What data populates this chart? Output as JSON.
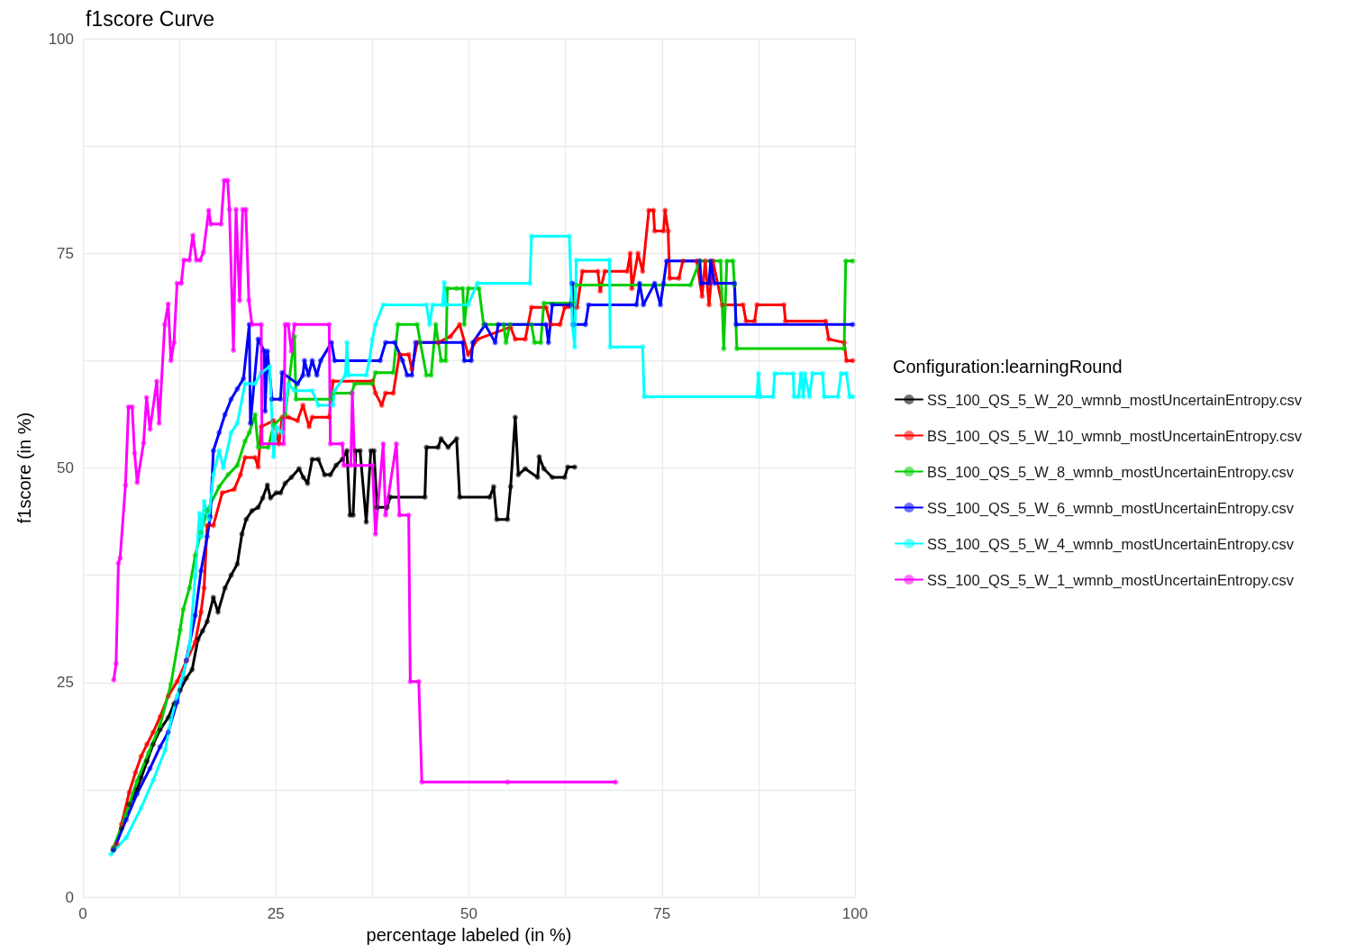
{
  "chart_data": {
    "type": "line",
    "title": "f1score Curve",
    "xlabel": "percentage labeled (in %)",
    "ylabel": "f1score (in %)",
    "legend_title": "Configuration:learningRound",
    "xlim": [
      0,
      100
    ],
    "xticks": [
      0,
      {
        "value": 12.5,
        "label": null
      },
      25,
      {
        "value": 37.5,
        "label": null
      },
      50,
      {
        "value": 62.5,
        "label": null
      },
      75,
      {
        "value": 87.5,
        "label": null
      },
      100
    ],
    "ylim": [
      0,
      100
    ],
    "yticks": [
      0,
      {
        "value": 12.5,
        "label": null
      },
      25,
      {
        "value": 37.5,
        "label": null
      },
      50,
      {
        "value": 62.5,
        "label": null
      },
      75,
      {
        "value": 87.5,
        "label": null
      },
      100
    ],
    "grid": true,
    "legend": "right",
    "marker": "circle",
    "line_style": "solid",
    "series": [
      {
        "name": "SS_100_QS_5_W_20_wmnb_mostUncertainEntropy.csv",
        "color": "#000000",
        "x": [
          3.9,
          5.0,
          6.0,
          7.0,
          7.55,
          8.3,
          9.1,
          10.0,
          11.05,
          11.8,
          12.6,
          13.4,
          14.15,
          14.9,
          15.5,
          16.1,
          16.9,
          17.5,
          18.4,
          19.2,
          20.0,
          20.6,
          21.15,
          21.9,
          22.7,
          23.3,
          23.9,
          24.3,
          25.05,
          25.6,
          26.2,
          27.0,
          28.0,
          28.55,
          29.1,
          29.7,
          30.5,
          31.3,
          32.05,
          32.8,
          33.6,
          34.2,
          34.6,
          35.0,
          35.35,
          35.9,
          36.7,
          37.3,
          37.7,
          38.1,
          39.4,
          39.8,
          44.3,
          44.5,
          46.0,
          46.4,
          47.3,
          48.4,
          48.8,
          52.7,
          53.2,
          53.6,
          55.0,
          55.4,
          56.0,
          56.4,
          57.3,
          58.9,
          59.1,
          59.7,
          60.8,
          62.4,
          62.8,
          63.7
        ],
        "values": [
          5.5,
          8.0,
          10.8,
          12.5,
          13.9,
          15.8,
          17.8,
          19.5,
          20.9,
          22.5,
          24.1,
          25.5,
          26.5,
          30.0,
          31.0,
          32.1,
          34.9,
          33.2,
          36.0,
          37.5,
          38.8,
          42.3,
          44.0,
          45.0,
          45.4,
          46.5,
          48.0,
          46.5,
          47.1,
          47.1,
          48.2,
          48.9,
          49.9,
          48.9,
          48.2,
          51.0,
          51.0,
          49.2,
          49.2,
          50.3,
          51.0,
          52.0,
          44.5,
          44.5,
          52.0,
          52.0,
          43.7,
          52.0,
          52.0,
          45.4,
          45.4,
          46.6,
          46.6,
          52.4,
          52.4,
          53.4,
          52.4,
          53.4,
          46.6,
          46.6,
          47.8,
          44.0,
          44.0,
          47.8,
          55.9,
          49.2,
          49.9,
          48.9,
          51.3,
          49.9,
          48.9,
          48.9,
          50.1,
          50.1
        ]
      },
      {
        "name": "BS_100_QS_5_W_10_wmnb_mostUncertainEntropy.csv",
        "color": "#ff0000",
        "x": [
          4.0,
          4.4,
          5.0,
          6.0,
          6.8,
          7.55,
          8.3,
          9.1,
          10.0,
          11.05,
          12.2,
          13.4,
          14.55,
          15.3,
          15.7,
          16.1,
          16.9,
          18.05,
          19.6,
          20.4,
          21.0,
          22.3,
          22.7,
          23.1,
          24.7,
          25.4,
          25.8,
          26.6,
          27.8,
          28.5,
          29.3,
          29.7,
          31.9,
          32.4,
          37.5,
          37.9,
          38.7,
          39.2,
          40.2,
          41.0,
          42.2,
          42.6,
          43.3,
          46.0,
          47.6,
          48.8,
          49.9,
          51.1,
          55.4,
          56.0,
          57.3,
          58.1,
          60.0,
          60.6,
          61.8,
          62.4,
          64.0,
          64.7,
          66.7,
          67.0,
          67.6,
          70.5,
          70.9,
          71.1,
          71.9,
          72.5,
          73.3,
          73.9,
          74.05,
          75.2,
          75.4,
          75.8,
          76.0,
          77.2,
          77.7,
          79.5,
          80.2,
          80.6,
          81.1,
          81.6,
          82.8,
          85.5,
          85.9,
          87.0,
          87.3,
          90.8,
          91.0,
          96.2,
          96.6,
          98.6,
          98.9,
          99.7
        ],
        "values": [
          5.8,
          6.2,
          8.5,
          12.2,
          14.5,
          16.4,
          17.8,
          19.2,
          21.0,
          23.4,
          25.1,
          27.5,
          29.7,
          33.2,
          36.0,
          43.3,
          43.3,
          47.1,
          47.5,
          49.2,
          51.2,
          51.2,
          50.1,
          54.8,
          55.5,
          52.8,
          55.9,
          55.9,
          55.5,
          57.3,
          54.8,
          55.9,
          55.9,
          60.1,
          60.1,
          58.7,
          57.3,
          58.7,
          58.7,
          63.2,
          63.2,
          61.5,
          64.6,
          64.6,
          65.3,
          66.7,
          63.2,
          65.0,
          66.4,
          65.0,
          65.0,
          68.7,
          68.7,
          66.7,
          66.7,
          68.7,
          68.7,
          72.9,
          72.9,
          70.6,
          72.9,
          72.9,
          75.0,
          70.9,
          75.0,
          72.9,
          80.0,
          80.0,
          77.6,
          77.6,
          80.0,
          77.6,
          72.1,
          72.1,
          74.1,
          74.1,
          70.0,
          74.1,
          69.0,
          74.1,
          69.0,
          69.0,
          67.1,
          67.1,
          69.0,
          69.0,
          67.1,
          67.1,
          65.0,
          64.6,
          62.5,
          62.5
        ]
      },
      {
        "name": "BS_100_QS_5_W_8_wmnb_mostUncertainEntropy.csv",
        "color": "#00cd00",
        "x": [
          4.0,
          5.5,
          7.0,
          8.5,
          10.0,
          11.4,
          12.6,
          13.0,
          13.8,
          14.55,
          15.3,
          16.1,
          17.65,
          18.8,
          20.0,
          21.0,
          21.55,
          22.3,
          22.7,
          24.0,
          24.7,
          26.2,
          27.4,
          27.6,
          32.05,
          32.4,
          34.8,
          35.2,
          37.5,
          37.9,
          40.2,
          40.8,
          43.3,
          43.7,
          44.5,
          45.1,
          45.7,
          46.4,
          47.0,
          47.2,
          48.4,
          49.2,
          49.4,
          49.9,
          51.3,
          51.9,
          54.5,
          54.8,
          55.3,
          58.1,
          58.5,
          59.3,
          59.7,
          63.5,
          63.9,
          78.7,
          79.9,
          82.6,
          83.0,
          83.4,
          84.2,
          84.4,
          84.7,
          98.6,
          98.8,
          99.7
        ],
        "values": [
          5.8,
          9.5,
          13.5,
          16.8,
          20.0,
          24.8,
          31.1,
          33.5,
          36.0,
          39.8,
          42.5,
          45.0,
          47.8,
          49.2,
          50.3,
          53.1,
          54.1,
          56.2,
          52.4,
          52.4,
          55.0,
          56.2,
          65.3,
          58.0,
          58.0,
          58.7,
          58.7,
          59.8,
          59.8,
          61.1,
          61.1,
          66.7,
          66.7,
          64.6,
          60.8,
          60.8,
          66.7,
          62.5,
          62.5,
          70.9,
          70.9,
          70.9,
          66.7,
          70.9,
          70.9,
          66.7,
          66.7,
          64.6,
          66.7,
          66.7,
          64.6,
          64.6,
          69.2,
          69.2,
          71.3,
          71.3,
          74.1,
          74.1,
          63.9,
          74.1,
          74.1,
          71.3,
          63.9,
          63.9,
          74.1,
          74.1
        ]
      },
      {
        "name": "SS_100_QS_5_W_6_wmnb_mostUncertainEntropy.csv",
        "color": "#0000ff",
        "x": [
          4.0,
          5.6,
          7.0,
          8.7,
          10.0,
          11.05,
          12.2,
          13.4,
          14.55,
          15.3,
          16.1,
          16.5,
          16.9,
          17.65,
          18.4,
          19.2,
          20.0,
          20.8,
          21.55,
          21.7,
          22.7,
          23.5,
          23.6,
          23.9,
          24.5,
          25.6,
          25.8,
          27.8,
          28.5,
          28.7,
          29.2,
          29.7,
          30.3,
          30.8,
          32.2,
          32.6,
          38.5,
          39.2,
          40.4,
          41.4,
          42.0,
          42.6,
          43.1,
          49.2,
          49.4,
          50.3,
          50.5,
          52.1,
          53.4,
          53.8,
          60.0,
          60.3,
          60.8,
          63.2,
          63.4,
          63.5,
          65.1,
          65.5,
          71.7,
          72.1,
          72.6,
          74.05,
          74.8,
          75.2,
          75.6,
          79.9,
          80.1,
          81.1,
          81.3,
          81.8,
          84.4,
          84.6,
          99.7
        ],
        "values": [
          5.5,
          9.0,
          12.0,
          15.0,
          17.5,
          19.2,
          22.7,
          27.6,
          32.8,
          38.0,
          42.0,
          44.3,
          52.0,
          54.1,
          56.2,
          58.0,
          59.2,
          60.4,
          66.7,
          55.2,
          65.0,
          63.6,
          56.6,
          63.6,
          58.0,
          58.0,
          61.1,
          59.8,
          60.8,
          62.5,
          60.8,
          62.5,
          60.8,
          62.5,
          64.6,
          62.5,
          62.5,
          64.6,
          64.6,
          62.5,
          60.8,
          60.8,
          64.6,
          64.6,
          62.5,
          62.5,
          64.6,
          66.7,
          64.6,
          66.7,
          66.7,
          64.6,
          69.0,
          69.0,
          71.5,
          66.7,
          66.7,
          69.0,
          69.0,
          71.5,
          69.0,
          71.5,
          69.0,
          71.5,
          74.1,
          74.1,
          71.5,
          71.5,
          74.1,
          71.5,
          71.5,
          66.7,
          66.7
        ]
      },
      {
        "name": "SS_100_QS_5_W_4_wmnb_mostUncertainEntropy.csv",
        "color": "#00ffff",
        "x": [
          3.65,
          5.6,
          7.55,
          9.1,
          10.65,
          11.4,
          12.2,
          13.0,
          13.8,
          14.55,
          15.1,
          15.4,
          15.7,
          16.3,
          16.9,
          17.65,
          18.2,
          19.2,
          20.0,
          21.0,
          22.3,
          23.1,
          24.2,
          24.7,
          25.05,
          25.8,
          26.6,
          27.4,
          29.7,
          30.5,
          32.4,
          32.6,
          34.0,
          34.2,
          34.4,
          36.7,
          37.1,
          37.5,
          37.9,
          38.9,
          44.5,
          44.9,
          45.3,
          46.6,
          46.8,
          47.0,
          49.9,
          51.1,
          57.9,
          58.1,
          63.0,
          63.4,
          63.7,
          63.9,
          68.2,
          68.3,
          72.5,
          72.7,
          87.3,
          87.5,
          87.7,
          89.4,
          89.6,
          92.0,
          92.1,
          92.7,
          93.0,
          93.3,
          93.5,
          94.1,
          94.5,
          95.8,
          96.0,
          97.8,
          98.2,
          98.9,
          99.3,
          99.7
        ],
        "values": [
          5.0,
          6.9,
          10.4,
          13.6,
          17.1,
          20.6,
          23.4,
          26.0,
          29.0,
          37.4,
          44.7,
          42.0,
          46.1,
          44.0,
          49.2,
          52.0,
          50.0,
          54.1,
          55.2,
          59.8,
          59.8,
          61.1,
          61.8,
          51.3,
          54.8,
          54.1,
          59.8,
          59.0,
          59.0,
          57.3,
          57.3,
          59.0,
          60.8,
          64.6,
          60.8,
          60.8,
          62.5,
          65.0,
          66.7,
          69.0,
          69.0,
          66.7,
          69.0,
          69.0,
          71.6,
          69.0,
          69.0,
          71.5,
          71.5,
          77.0,
          77.0,
          66.7,
          64.1,
          74.2,
          74.2,
          64.1,
          64.1,
          58.3,
          58.3,
          61.0,
          58.3,
          58.3,
          61.0,
          61.0,
          58.3,
          58.3,
          61.0,
          58.3,
          61.0,
          58.3,
          61.0,
          61.0,
          58.3,
          58.3,
          61.0,
          61.0,
          58.3,
          58.3
        ]
      },
      {
        "name": "SS_100_QS_5_W_1_wmnb_mostUncertainEntropy.csv",
        "color": "#ff00ff",
        "x": [
          4.0,
          4.3,
          4.6,
          4.82,
          5.52,
          5.91,
          6.38,
          6.7,
          7.04,
          7.86,
          8.25,
          8.7,
          9.57,
          9.88,
          10.6,
          11.05,
          11.4,
          11.8,
          12.2,
          12.75,
          13.07,
          13.8,
          14.24,
          14.7,
          15.2,
          15.6,
          16.3,
          16.57,
          17.9,
          18.3,
          18.75,
          18.98,
          19.5,
          19.84,
          20.3,
          20.7,
          21.1,
          21.5,
          21.9,
          23.1,
          23.2,
          26.0,
          26.2,
          26.6,
          27.0,
          27.4,
          31.9,
          32.05,
          33.6,
          33.8,
          34.7,
          34.9,
          35.2,
          37.5,
          37.9,
          38.9,
          39.2,
          40.6,
          41.0,
          42.2,
          42.4,
          43.5,
          43.9,
          55.0,
          69.0
        ],
        "values": [
          25.3,
          27.2,
          38.9,
          39.5,
          48.0,
          57.1,
          57.1,
          51.7,
          48.3,
          52.9,
          58.2,
          54.5,
          60.1,
          55.2,
          66.7,
          69.1,
          62.5,
          64.6,
          71.5,
          71.5,
          74.2,
          74.2,
          77.1,
          74.2,
          74.2,
          75.1,
          80.0,
          78.4,
          78.4,
          83.5,
          83.5,
          80.1,
          63.7,
          80.1,
          69.5,
          80.1,
          80.1,
          69.5,
          66.7,
          66.7,
          52.8,
          52.8,
          66.7,
          66.7,
          63.6,
          66.7,
          66.7,
          52.8,
          52.8,
          50.3,
          50.3,
          58.7,
          50.3,
          50.3,
          42.3,
          52.8,
          44.5,
          52.8,
          44.5,
          44.5,
          25.1,
          25.1,
          13.4,
          13.4,
          13.4
        ]
      }
    ]
  }
}
